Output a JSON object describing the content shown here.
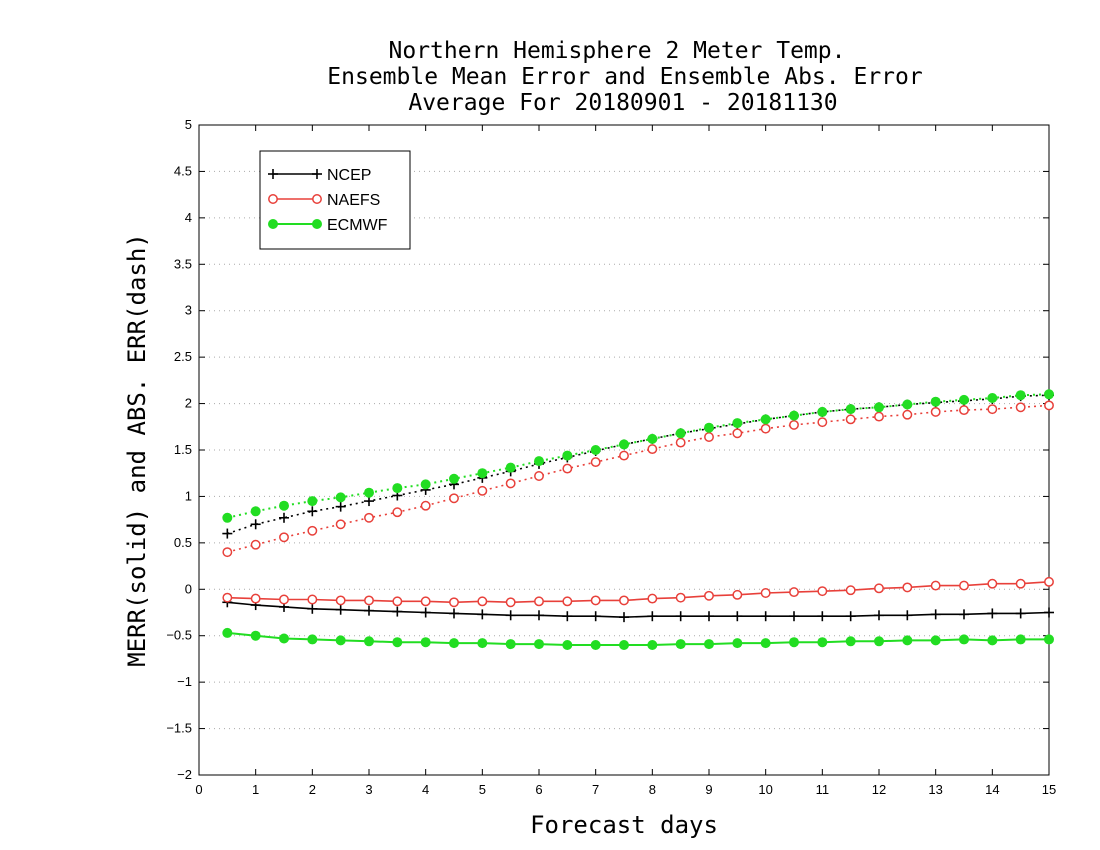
{
  "chart_data": {
    "type": "line",
    "title": [
      "Northern Hemisphere 2 Meter Temp.",
      "Ensemble Mean Error and Ensemble Abs. Error",
      "Average For 20180901 - 20181130"
    ],
    "xlabel": "Forecast days",
    "ylabel": "MERR(solid) and ABS. ERR(dash)",
    "xlim": [
      0,
      15
    ],
    "ylim": [
      -2,
      5
    ],
    "xticks": [
      "0",
      "1",
      "2",
      "3",
      "4",
      "5",
      "6",
      "7",
      "8",
      "9",
      "10",
      "11",
      "12",
      "13",
      "14",
      "15"
    ],
    "yticks": [
      "−2",
      "−1.5",
      "−1",
      "−0.5",
      "0",
      "0.5",
      "1",
      "1.5",
      "2",
      "2.5",
      "3",
      "3.5",
      "4",
      "4.5",
      "5"
    ],
    "grid": "horizontal dotted",
    "legend": "top-left",
    "x": [
      0.5,
      1,
      1.5,
      2,
      2.5,
      3,
      3.5,
      4,
      4.5,
      5,
      5.5,
      6,
      6.5,
      7,
      7.5,
      8,
      8.5,
      9,
      9.5,
      10,
      10.5,
      11,
      11.5,
      12,
      12.5,
      13,
      13.5,
      14,
      14.5,
      15
    ],
    "series": [
      {
        "name": "NCEP",
        "color": "#000000",
        "marker": "plus",
        "merr": [
          -0.14,
          -0.17,
          -0.19,
          -0.21,
          -0.22,
          -0.23,
          -0.24,
          -0.25,
          -0.26,
          -0.27,
          -0.28,
          -0.28,
          -0.29,
          -0.29,
          -0.3,
          -0.29,
          -0.29,
          -0.29,
          -0.29,
          -0.29,
          -0.29,
          -0.29,
          -0.29,
          -0.28,
          -0.28,
          -0.27,
          -0.27,
          -0.26,
          -0.26,
          -0.25
        ],
        "abs_err": [
          0.6,
          0.7,
          0.77,
          0.84,
          0.89,
          0.95,
          1.01,
          1.07,
          1.13,
          1.2,
          1.27,
          1.35,
          1.42,
          1.49,
          1.56,
          1.62,
          1.68,
          1.73,
          1.78,
          1.83,
          1.87,
          1.91,
          1.94,
          1.96,
          1.99,
          2.01,
          2.03,
          2.05,
          2.08,
          2.09
        ]
      },
      {
        "name": "NAEFS",
        "color": "#e8403a",
        "marker": "open-circle",
        "merr": [
          -0.09,
          -0.1,
          -0.11,
          -0.11,
          -0.12,
          -0.12,
          -0.13,
          -0.13,
          -0.14,
          -0.13,
          -0.14,
          -0.13,
          -0.13,
          -0.12,
          -0.12,
          -0.1,
          -0.09,
          -0.07,
          -0.06,
          -0.04,
          -0.03,
          -0.02,
          -0.01,
          0.01,
          0.02,
          0.04,
          0.04,
          0.06,
          0.06,
          0.08
        ],
        "abs_err": [
          0.4,
          0.48,
          0.56,
          0.63,
          0.7,
          0.77,
          0.83,
          0.9,
          0.98,
          1.06,
          1.14,
          1.22,
          1.3,
          1.37,
          1.44,
          1.51,
          1.58,
          1.64,
          1.68,
          1.73,
          1.77,
          1.8,
          1.83,
          1.86,
          1.88,
          1.91,
          1.93,
          1.94,
          1.96,
          1.98
        ]
      },
      {
        "name": "ECMWF",
        "color": "#22dd22",
        "marker": "filled-circle",
        "merr": [
          -0.47,
          -0.5,
          -0.53,
          -0.54,
          -0.55,
          -0.56,
          -0.57,
          -0.57,
          -0.58,
          -0.58,
          -0.59,
          -0.59,
          -0.6,
          -0.6,
          -0.6,
          -0.6,
          -0.59,
          -0.59,
          -0.58,
          -0.58,
          -0.57,
          -0.57,
          -0.56,
          -0.56,
          -0.55,
          -0.55,
          -0.54,
          -0.55,
          -0.54,
          -0.54
        ],
        "abs_err": [
          0.77,
          0.84,
          0.9,
          0.95,
          0.99,
          1.04,
          1.09,
          1.13,
          1.19,
          1.25,
          1.31,
          1.38,
          1.44,
          1.5,
          1.56,
          1.62,
          1.68,
          1.74,
          1.79,
          1.83,
          1.87,
          1.91,
          1.94,
          1.96,
          1.99,
          2.02,
          2.04,
          2.06,
          2.09,
          2.1
        ]
      }
    ]
  }
}
